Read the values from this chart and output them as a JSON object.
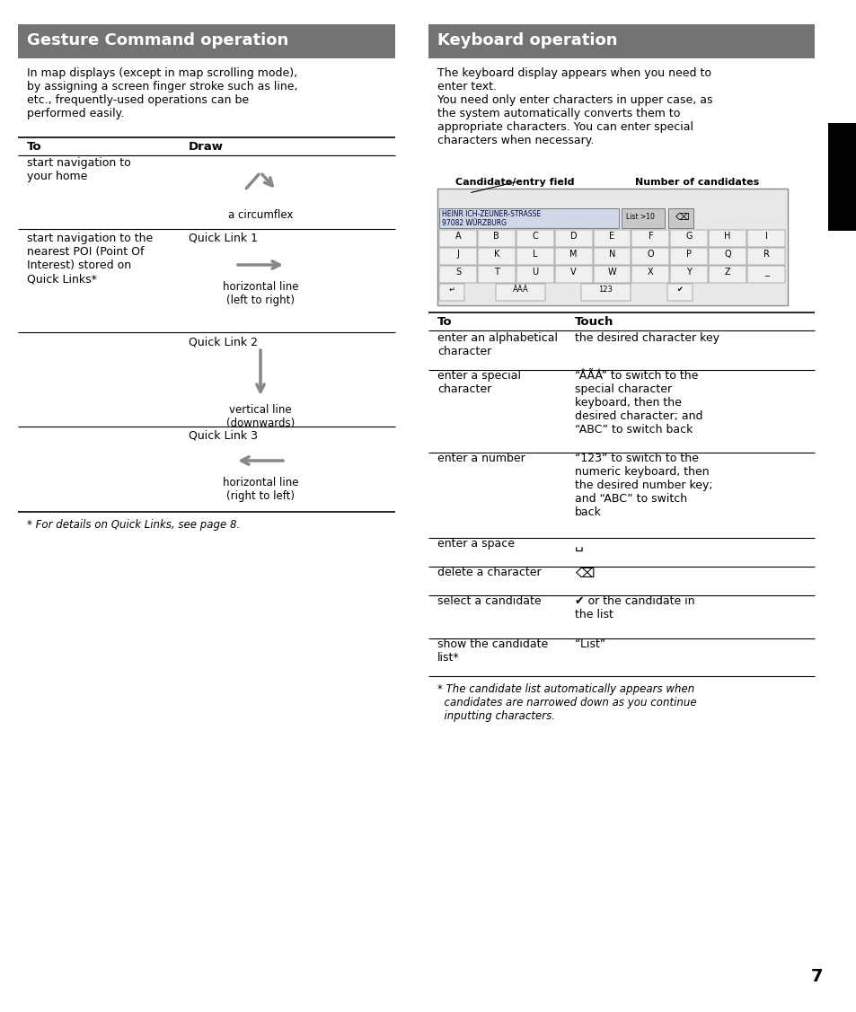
{
  "page_bg": "#ffffff",
  "header_bg": "#737373",
  "header_text_color": "#ffffff",
  "body_text_color": "#000000",
  "arrow_color": "#888888",
  "line_color": "#000000",
  "left_title": "Gesture Command operation",
  "right_title": "Keyboard operation",
  "left_intro": "In map displays (except in map scrolling mode),\nby assigning a screen finger stroke such as line,\netc., frequently-used operations can be\nperformed easily.",
  "right_intro": "The keyboard display appears when you need to\nenter text.\nYou need only enter characters in upper case, as\nthe system automatically converts them to\nappropriate characters. You can enter special\ncharacters when necessary.",
  "left_col1_header": "To",
  "left_col2_header": "Draw",
  "right_col1_header": "To",
  "right_col2_header": "Touch",
  "left_rows": [
    {
      "col1": "start navigation to\nyour home",
      "col2_label": "a circumflex",
      "arrow_type": "circumflex"
    },
    {
      "col1": "start navigation to the\nnearest POI (Point Of\nInterest) stored on\nQuick Links*",
      "col2_label": "Quick Link 1\n\nhorizontal line\n(left to right)",
      "arrow_type": "right"
    },
    {
      "col1": "",
      "col2_label": "Quick Link 2\n\nvertical line\n(downwards)",
      "arrow_type": "down"
    },
    {
      "col1": "",
      "col2_label": "Quick Link 3\n\nhorizontal line\n(right to left)",
      "arrow_type": "left"
    }
  ],
  "left_footnote": "* For details on Quick Links, see page 8.",
  "right_rows": [
    {
      "col1": "enter an alphabetical\ncharacter",
      "col2": "the desired character key"
    },
    {
      "col1": "enter a special\ncharacter",
      "col2": "“ÂÃÁ” to switch to the\nspecial character\nkeyboard, then the\ndesired character; and\n“ABC” to switch back"
    },
    {
      "col1": "enter a number",
      "col2": "“123” to switch to the\nnumeric keyboard, then\nthe desired number key;\nand “ABC” to switch\nback"
    },
    {
      "col1": "enter a space",
      "col2": "␣"
    },
    {
      "col1": "delete a character",
      "col2": "⌫"
    },
    {
      "col1": "select a candidate",
      "col2": "✔ or the candidate in\nthe list"
    },
    {
      "col1": "show the candidate\nlist*",
      "col2": "“List”"
    }
  ],
  "right_footnote": "* The candidate list automatically appears when\n  candidates are narrowed down as you continue\n  inputting characters.",
  "page_number": "7",
  "black_tab_color": "#000000"
}
